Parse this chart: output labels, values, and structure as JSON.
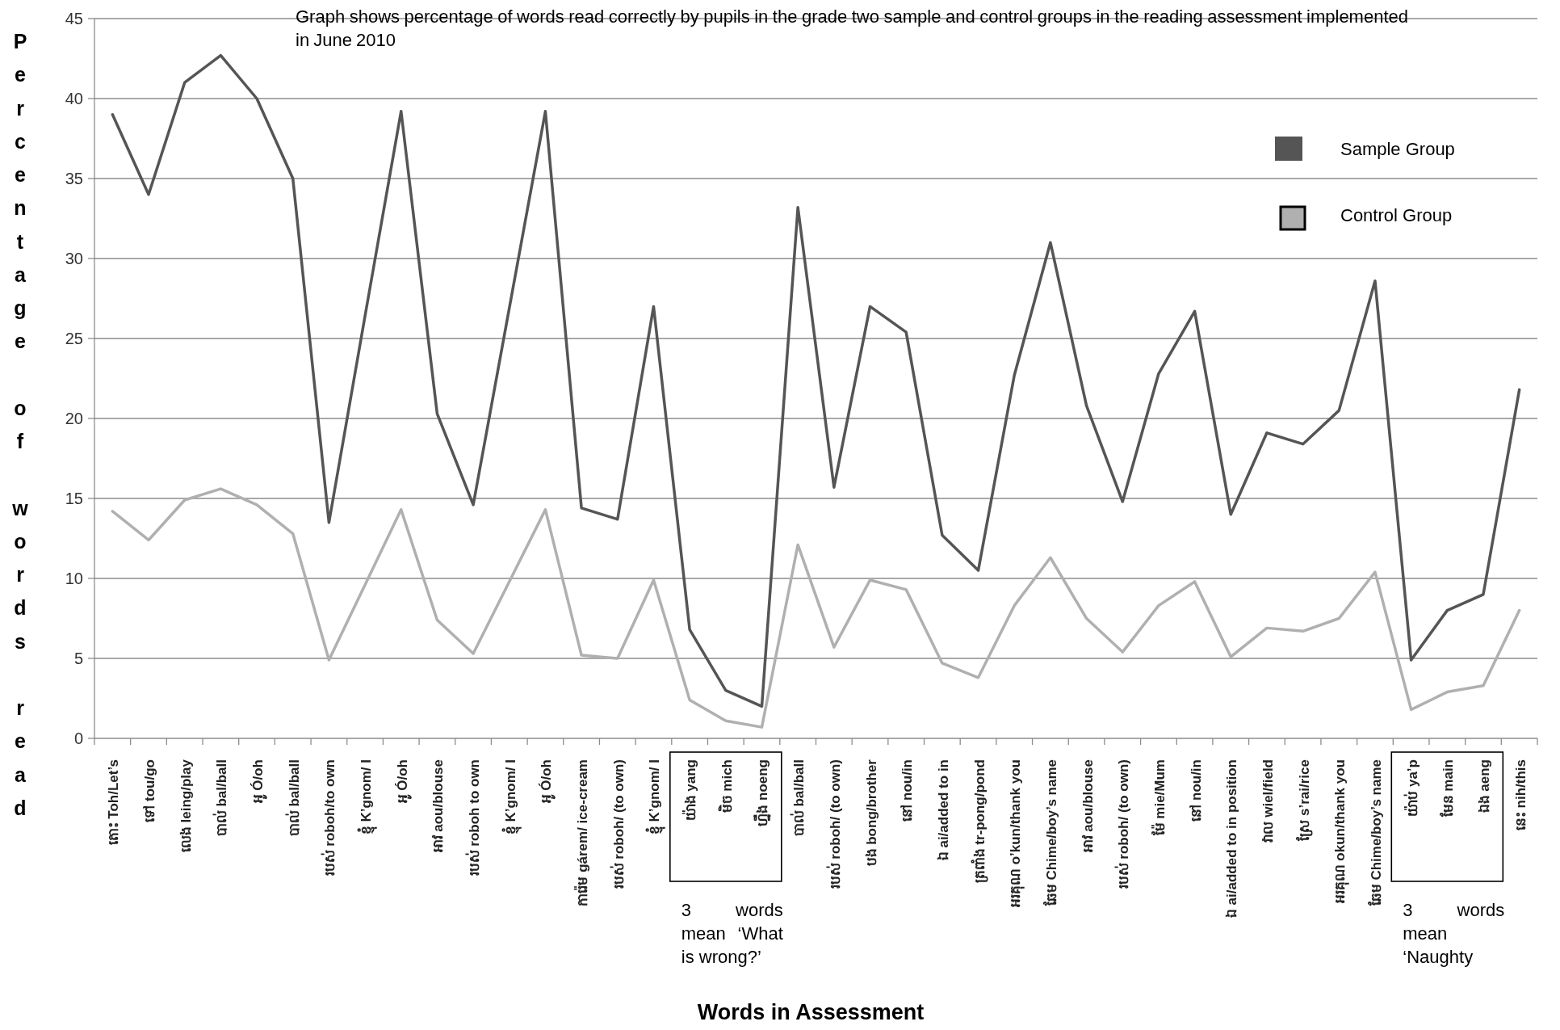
{
  "chart_data": {
    "type": "line",
    "title": "Graph shows percentage of words read correctly by pupils in the grade two sample and control groups in the reading assessment implemented in June 2010",
    "xlabel": "Words in Assessment",
    "ylabel": "Percentage of words read",
    "categories": [
      "តោះ Toh/Let’s",
      "ទៅ tou/go",
      "លេង leing/play",
      "បាល់ bal/ball",
      "អូ Ó/oh",
      "បាល់ bal/ball",
      "របស់ roboh/to own",
      "ខ្ញុំ K’gnom/ I",
      "អូ Ó/oh",
      "អាវ aou/blouse",
      "របស់ roboh to own",
      "ខ្ញុំ K’gnom/ I",
      "អូ Ó/oh",
      "ការ៉េម gárem/ ice-cream",
      "របស់ roboh/ (to own)",
      "ខ្ញុំ K’gnom/ I",
      "យ៉ាង yang",
      "មិច mich",
      "ហ្នឹង noeng",
      "បាល់ bal/ball",
      "របស់ roboh/ (to own)",
      "បង bong/brother",
      "នៅ nou/in",
      "ឯ ai/added to in",
      "ត្រពាំង tr-pong/pond",
      "អរគុណ o’kun/thank you",
      "ឆែម Chime/boy’s name",
      "អាវ aou/blouse",
      "របស់ roboh/ (to own)",
      "ម៉ែ mie/Mum",
      "នៅ nou/in",
      "ឯ ai/added to in position",
      "វាល wiel/field",
      "ស្រែ s’rai/rice",
      "អរគុណ okun/thank you",
      "ឆែម Chime/boy’s name",
      "យ៉ាប់ ya’p",
      "មែន main",
      "ឯង aeng",
      "នេះ nih/this"
    ],
    "series": [
      {
        "name": "Sample Group",
        "color": "#555555",
        "values": [
          39,
          34,
          41,
          42.7,
          40,
          35,
          13.5,
          26.4,
          39.2,
          20.3,
          14.6,
          26.9,
          39.2,
          14.4,
          13.7,
          27,
          6.8,
          3,
          2,
          33.2,
          15.7,
          27,
          25.4,
          12.7,
          10.5,
          22.7,
          31,
          20.8,
          14.8,
          22.8,
          26.7,
          14,
          19.1,
          18.4,
          20.5,
          28.6,
          4.9,
          8,
          9,
          21.8
        ]
      },
      {
        "name": "Control Group",
        "color": "#b0b0b0",
        "values": [
          14.2,
          12.4,
          14.9,
          15.6,
          14.6,
          12.8,
          4.9,
          9.6,
          14.3,
          7.4,
          5.3,
          9.8,
          14.3,
          5.2,
          5,
          9.9,
          2.4,
          1.1,
          0.7,
          12.1,
          5.7,
          9.9,
          9.3,
          4.7,
          3.8,
          8.3,
          11.3,
          7.5,
          5.4,
          8.3,
          9.8,
          5.1,
          6.9,
          6.7,
          7.5,
          10.4,
          1.8,
          2.9,
          3.3,
          8
        ]
      }
    ],
    "ylim": [
      0,
      45
    ],
    "yticks": [
      0,
      5,
      10,
      15,
      20,
      25,
      30,
      35,
      40,
      45
    ],
    "grid": "y",
    "legend": "top right",
    "line_style": "solid",
    "annotations": [
      "3 words mean ‘What is wrong?’",
      "3 words mean ‘Naughty"
    ]
  }
}
